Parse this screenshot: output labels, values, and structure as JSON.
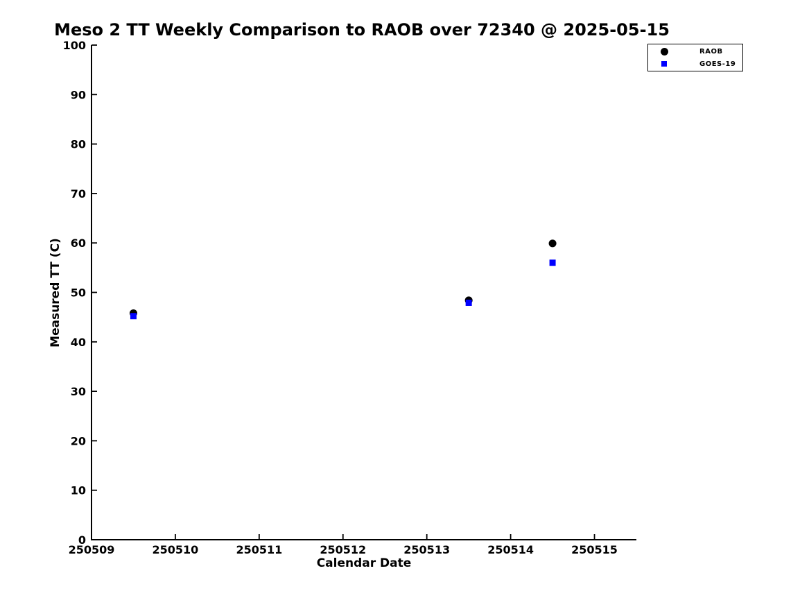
{
  "page": {
    "background_color": "#ffffff",
    "text_color": "#000000"
  },
  "chart_data": {
    "type": "scatter",
    "title": "Meso 2 TT Weekly Comparison to RAOB over 72340 @ 2025-05-15",
    "xlabel": "Calendar Date",
    "ylabel": "Measured TT (C)",
    "xlim": [
      250509,
      250515.5
    ],
    "ylim": [
      0,
      100
    ],
    "x_ticks": [
      250509,
      250510,
      250511,
      250512,
      250513,
      250514,
      250515
    ],
    "y_ticks": [
      0,
      10,
      20,
      30,
      40,
      50,
      60,
      70,
      80,
      90,
      100
    ],
    "tick_direction": "in",
    "grid": false,
    "legend_position": "upper-right-outside-axes",
    "series": [
      {
        "name": "RAOB",
        "marker": "circle",
        "color": "#000000",
        "points": [
          [
            250509.5,
            45.8
          ],
          [
            250513.5,
            48.4
          ],
          [
            250514.5,
            59.9
          ]
        ]
      },
      {
        "name": "GOES-19",
        "marker": "square",
        "color": "#0000ff",
        "points": [
          [
            250509.5,
            45.2
          ],
          [
            250513.5,
            47.9
          ],
          [
            250514.5,
            56.0
          ]
        ]
      }
    ]
  }
}
